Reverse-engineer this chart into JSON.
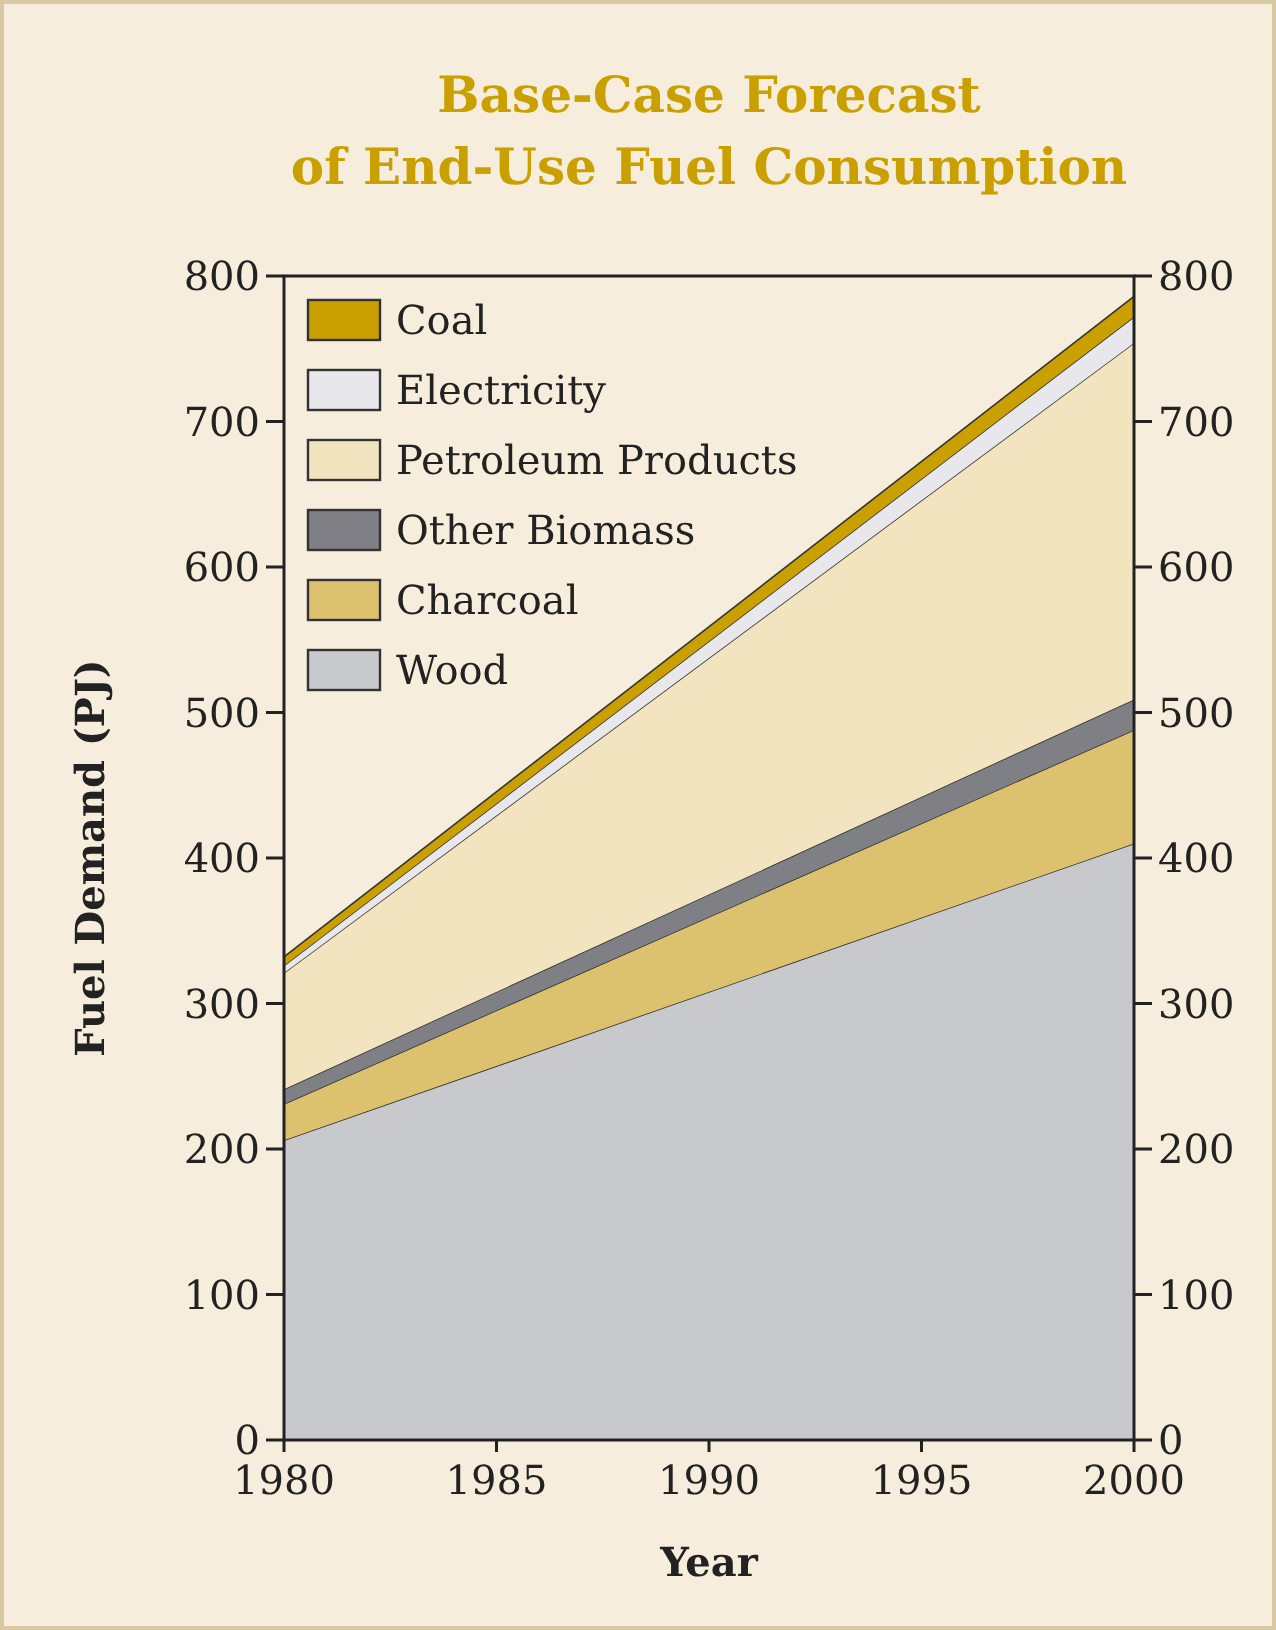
{
  "chart_data": {
    "type": "area",
    "stacked": true,
    "title": "Base-Case Forecast\nof End-Use Fuel Consumption",
    "xlabel": "Year",
    "ylabel": "Fuel Demand (PJ)",
    "x": [
      1980,
      2000
    ],
    "xlim": [
      1980,
      2000
    ],
    "xticks": [
      1980,
      1985,
      1990,
      1995,
      2000
    ],
    "ylim": [
      0,
      800
    ],
    "yticks": [
      0,
      100,
      200,
      300,
      400,
      500,
      600,
      700,
      800
    ],
    "y2lim": [
      0,
      800
    ],
    "y2ticks": [
      0,
      100,
      200,
      300,
      400,
      500,
      600,
      700,
      800
    ],
    "legend": "top left",
    "grid": false,
    "series": [
      {
        "name": "Wood",
        "color": "#c8c9cc",
        "values": [
          206,
          410
        ]
      },
      {
        "name": "Charcoal",
        "color": "#dcc26e",
        "values": [
          25,
          78
        ]
      },
      {
        "name": "Other Biomass",
        "color": "#7f8085",
        "values": [
          10,
          21
        ]
      },
      {
        "name": "Petroleum Products",
        "color": "#f2e4bf",
        "values": [
          80,
          245
        ]
      },
      {
        "name": "Electricity",
        "color": "#e8e8ec",
        "values": [
          5,
          18
        ]
      },
      {
        "name": "Coal",
        "color": "#c9a000",
        "values": [
          6,
          14
        ]
      }
    ]
  }
}
